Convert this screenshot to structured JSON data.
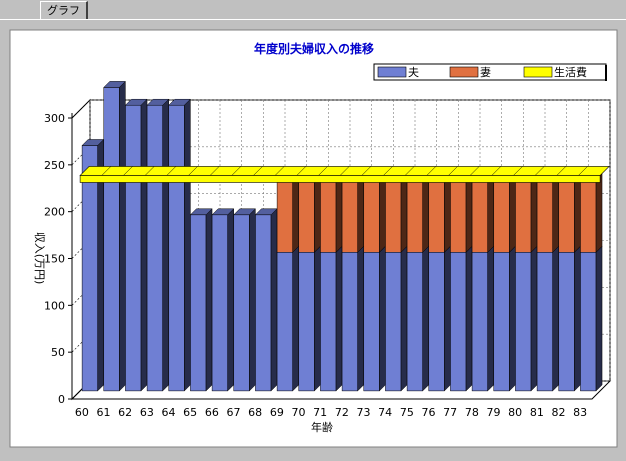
{
  "tab": {
    "label": "グラフ"
  },
  "chart_data": {
    "type": "bar",
    "title": "年度別夫婦収入の推移",
    "xlabel": "年齢",
    "ylabel": "収入(万円)",
    "ylim": [
      0,
      300
    ],
    "yticks": [
      0,
      50,
      100,
      150,
      200,
      250,
      300
    ],
    "categories": [
      "60",
      "61",
      "62",
      "63",
      "64",
      "65",
      "66",
      "67",
      "68",
      "69",
      "70",
      "71",
      "72",
      "73",
      "74",
      "75",
      "76",
      "77",
      "78",
      "79",
      "80",
      "81",
      "82",
      "83"
    ],
    "series": [
      {
        "name": "夫",
        "color": "#6f7fd3",
        "values": [
          262,
          324,
          305,
          305,
          305,
          188,
          188,
          188,
          188,
          148,
          148,
          148,
          148,
          148,
          148,
          148,
          148,
          148,
          148,
          148,
          148,
          148,
          148,
          148
        ]
      },
      {
        "name": "妻",
        "color": "#e07040",
        "values": [
          0,
          0,
          0,
          0,
          0,
          0,
          0,
          0,
          0,
          80,
          80,
          80,
          80,
          80,
          80,
          80,
          80,
          80,
          80,
          80,
          80,
          80,
          80,
          80
        ]
      },
      {
        "name": "生活費",
        "color": "#ffff00",
        "type": "line",
        "value": 230
      }
    ],
    "legend_position": "top-right",
    "grid": true
  }
}
